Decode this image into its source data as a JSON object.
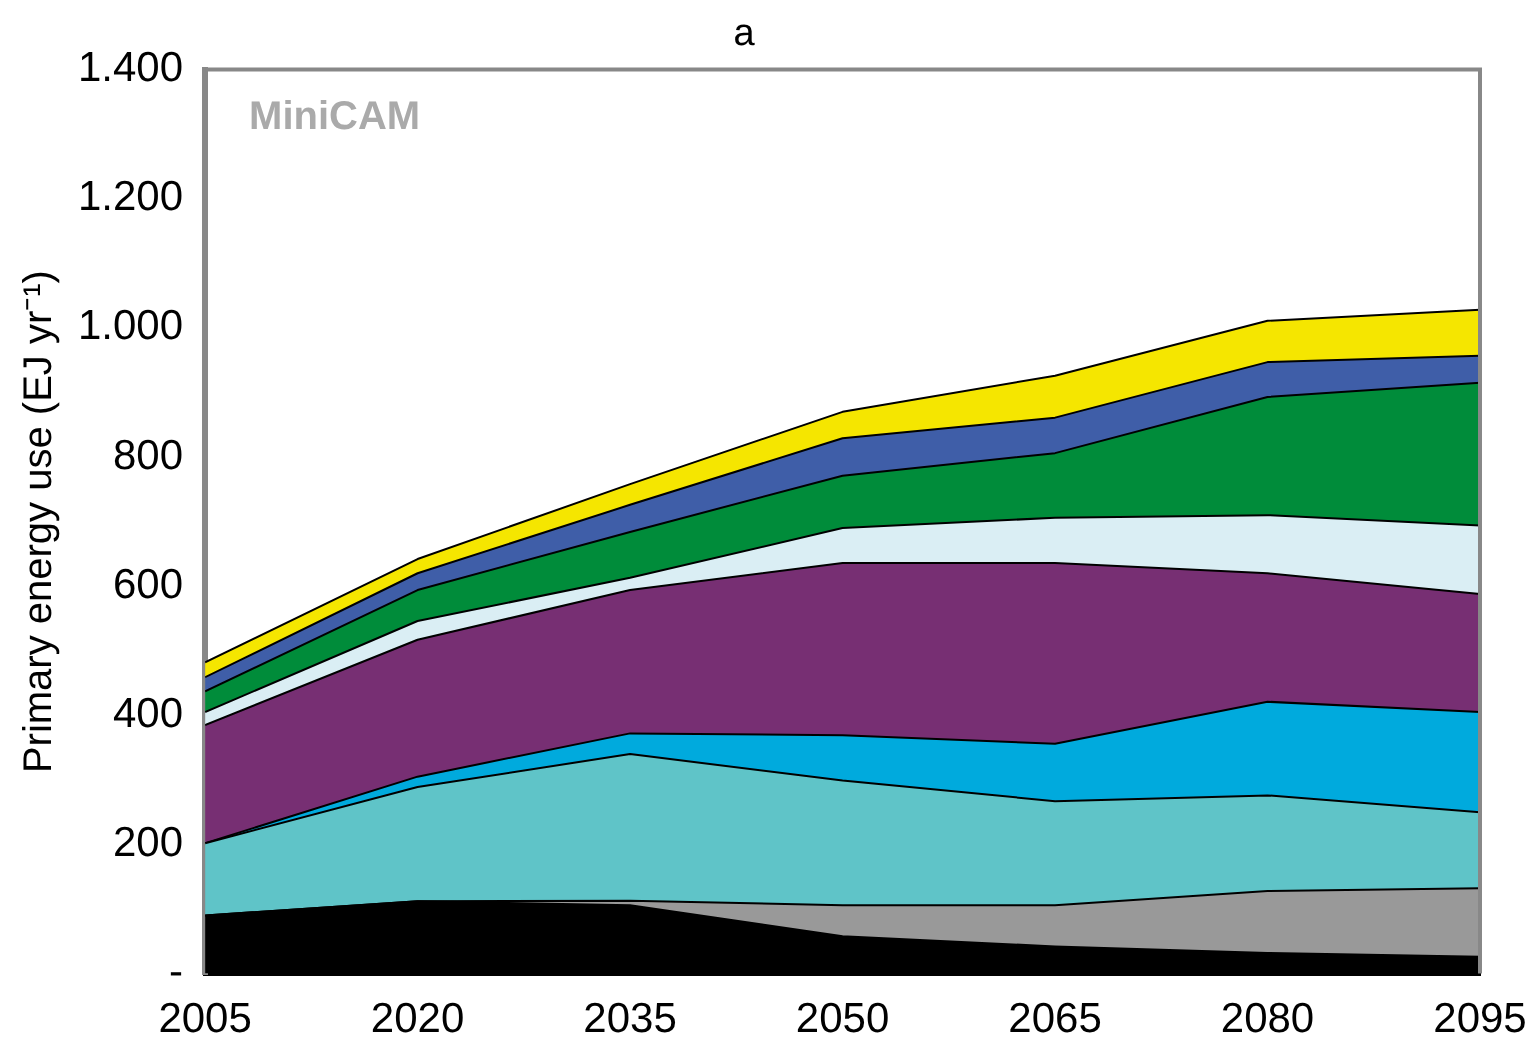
{
  "chart_data": {
    "type": "area",
    "title": "a",
    "ylabel": "Primary energy use (EJ yr⁻¹)",
    "annotations": [
      "MiniCAM"
    ],
    "stacked": true,
    "grid": false,
    "legend": false,
    "x": [
      2005,
      2020,
      2035,
      2050,
      2065,
      2080,
      2095
    ],
    "xlim": [
      2005,
      2095
    ],
    "xticks": [
      2005,
      2020,
      2035,
      2050,
      2065,
      2080,
      2095
    ],
    "ylim": [
      0,
      1400
    ],
    "yticks": [
      {
        "value": 0,
        "label": "-"
      },
      200,
      400,
      600,
      800,
      {
        "value": 1000,
        "label": "1.000"
      },
      {
        "value": 1200,
        "label": "1.200"
      },
      {
        "value": 1400,
        "label": "1.400"
      }
    ],
    "series": [
      {
        "color": "#000000",
        "values": [
          90,
          112,
          106,
          58,
          42,
          32,
          26
        ]
      },
      {
        "color": "#999999",
        "values": [
          0,
          0,
          7,
          48,
          64,
          96,
          106
        ]
      },
      {
        "color": "#5fc4c8",
        "values": [
          112,
          177,
          227,
          193,
          161,
          148,
          118
        ]
      },
      {
        "color": "#00aadd",
        "values": [
          0,
          16,
          32,
          70,
          89,
          145,
          155
        ]
      },
      {
        "color": "#772f73",
        "values": [
          183,
          212,
          222,
          267,
          280,
          199,
          183
        ]
      },
      {
        "color": "#daeef4",
        "values": [
          20,
          29,
          19,
          54,
          70,
          90,
          106
        ]
      },
      {
        "color": "#008c3a",
        "values": [
          32,
          48,
          71,
          81,
          100,
          183,
          221
        ]
      },
      {
        "color": "#3f5ea8",
        "values": [
          22,
          26,
          42,
          58,
          55,
          54,
          42
        ]
      },
      {
        "color": "#f5e600",
        "values": [
          23,
          22,
          32,
          41,
          65,
          64,
          71
        ]
      }
    ]
  }
}
